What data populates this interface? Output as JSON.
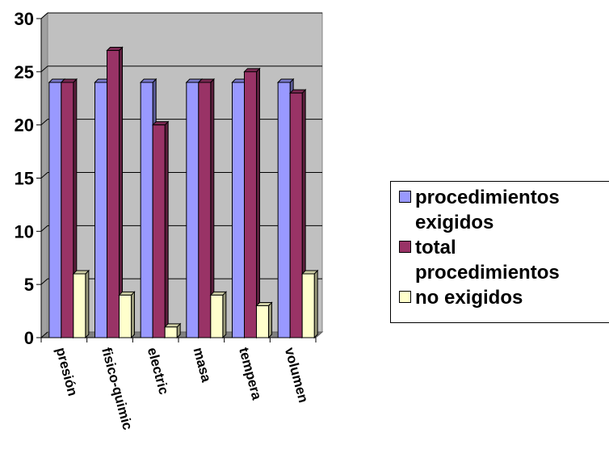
{
  "chart_data": {
    "type": "bar",
    "title": "",
    "xlabel": "",
    "ylabel": "",
    "ylim": [
      0,
      30
    ],
    "yticks": [
      0,
      5,
      10,
      15,
      20,
      25,
      30
    ],
    "grid": "horizontal",
    "legend_position": "right",
    "categories": [
      "presión",
      "fisico-quimic",
      "electric",
      "masa",
      "tempera",
      "volumen"
    ],
    "series": [
      {
        "name": "procedimientos exigidos",
        "color": "#9999ff",
        "values": [
          24,
          24,
          24,
          24,
          24,
          24
        ]
      },
      {
        "name": "total procedimientos",
        "color": "#993366",
        "values": [
          24,
          27,
          20,
          24,
          25,
          23
        ]
      },
      {
        "name": "no exigidos",
        "color": "#ffffcc",
        "values": [
          6,
          4,
          1,
          4,
          3,
          6
        ]
      }
    ]
  },
  "legend": {
    "items": [
      {
        "label": "procedimientos\nexigidos",
        "color": "#9999ff"
      },
      {
        "label": "total\nprocedimientos",
        "color": "#993366"
      },
      {
        "label": "no exigidos",
        "color": "#ffffcc"
      }
    ]
  }
}
